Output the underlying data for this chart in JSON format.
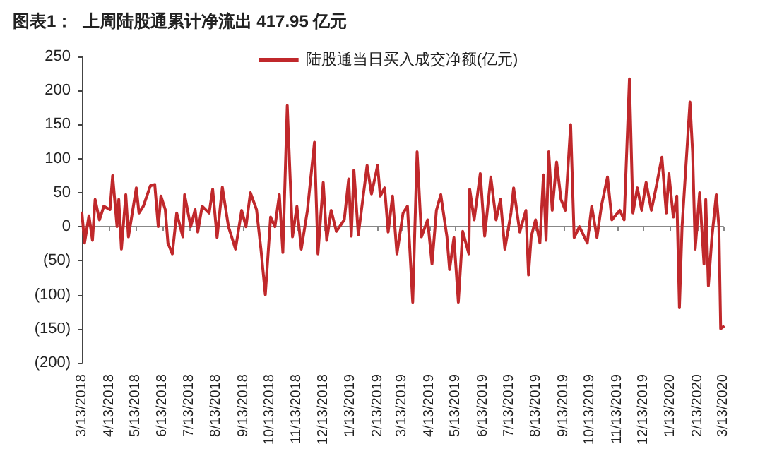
{
  "chart_data": {
    "type": "line",
    "title": "图表1：  上周陆股通累计净流出 417.95 亿元",
    "x": [
      "2018-03-13",
      "2018-03-16",
      "2018-03-21",
      "2018-03-25",
      "2018-03-28",
      "2018-04-02",
      "2018-04-07",
      "2018-04-14",
      "2018-04-17",
      "2018-04-22",
      "2018-04-24",
      "2018-04-27",
      "2018-05-02",
      "2018-05-05",
      "2018-05-14",
      "2018-05-17",
      "2018-05-22",
      "2018-05-30",
      "2018-06-04",
      "2018-06-08",
      "2018-06-11",
      "2018-06-16",
      "2018-06-19",
      "2018-06-24",
      "2018-06-29",
      "2018-07-06",
      "2018-07-08",
      "2018-07-15",
      "2018-07-20",
      "2018-07-23",
      "2018-07-28",
      "2018-08-05",
      "2018-08-09",
      "2018-08-14",
      "2018-08-20",
      "2018-08-27",
      "2018-09-04",
      "2018-09-11",
      "2018-09-16",
      "2018-09-21",
      "2018-09-28",
      "2018-10-03",
      "2018-10-08",
      "2018-10-14",
      "2018-10-19",
      "2018-10-24",
      "2018-10-28",
      "2018-11-02",
      "2018-11-08",
      "2018-11-13",
      "2018-11-18",
      "2018-11-25",
      "2018-12-03",
      "2018-12-07",
      "2018-12-13",
      "2018-12-17",
      "2018-12-22",
      "2018-12-28",
      "2019-01-06",
      "2019-01-11",
      "2019-01-14",
      "2019-01-17",
      "2019-01-22",
      "2019-02-01",
      "2019-02-06",
      "2019-02-13",
      "2019-02-16",
      "2019-02-21",
      "2019-02-25",
      "2019-03-02",
      "2019-03-07",
      "2019-03-14",
      "2019-03-19",
      "2019-03-25",
      "2019-03-30",
      "2019-04-04",
      "2019-04-11",
      "2019-04-16",
      "2019-04-21",
      "2019-04-26",
      "2019-05-03",
      "2019-05-06",
      "2019-05-11",
      "2019-05-16",
      "2019-05-21",
      "2019-05-28",
      "2019-05-29",
      "2019-06-03",
      "2019-06-10",
      "2019-06-15",
      "2019-06-22",
      "2019-06-28",
      "2019-07-03",
      "2019-07-08",
      "2019-07-15",
      "2019-07-18",
      "2019-07-25",
      "2019-08-01",
      "2019-08-04",
      "2019-08-07",
      "2019-08-12",
      "2019-08-17",
      "2019-08-21",
      "2019-08-24",
      "2019-08-27",
      "2019-08-31",
      "2019-09-05",
      "2019-09-10",
      "2019-09-15",
      "2019-09-21",
      "2019-09-25",
      "2019-10-01",
      "2019-10-10",
      "2019-10-15",
      "2019-10-21",
      "2019-10-26",
      "2019-11-02",
      "2019-11-07",
      "2019-11-16",
      "2019-11-21",
      "2019-11-27",
      "2019-12-01",
      "2019-12-06",
      "2019-12-11",
      "2019-12-16",
      "2019-12-22",
      "2019-12-27",
      "2020-01-03",
      "2020-01-08",
      "2020-01-11",
      "2020-01-16",
      "2020-01-20",
      "2020-01-23",
      "2020-01-26",
      "2020-02-04",
      "2020-02-07",
      "2020-02-10",
      "2020-02-15",
      "2020-02-20",
      "2020-02-22",
      "2020-02-25",
      "2020-02-29",
      "2020-03-05",
      "2020-03-08",
      "2020-03-10",
      "2020-03-13"
    ],
    "series": [
      {
        "name": "陆股通当日买入成交净额(亿元)",
        "color": "#c0282b",
        "values": [
          20,
          -24,
          16,
          -20,
          40,
          10,
          30,
          25,
          75,
          0,
          40,
          -33,
          47,
          -15,
          57,
          20,
          30,
          60,
          62,
          0,
          45,
          25,
          -24,
          -40,
          20,
          -15,
          47,
          0,
          25,
          -8,
          30,
          20,
          55,
          -16,
          58,
          0,
          -33,
          24,
          0,
          50,
          25,
          -33,
          -100,
          14,
          0,
          47,
          -38,
          178,
          -15,
          30,
          -33,
          24,
          124,
          -40,
          65,
          -20,
          24,
          -7,
          10,
          70,
          -14,
          83,
          -12,
          90,
          48,
          90,
          45,
          57,
          -8,
          45,
          -40,
          20,
          30,
          -111,
          110,
          -15,
          10,
          -55,
          24,
          47,
          -15,
          -63,
          -16,
          -111,
          -7,
          -40,
          55,
          10,
          78,
          -14,
          73,
          10,
          40,
          -33,
          20,
          57,
          -8,
          24,
          -71,
          -15,
          10,
          -24,
          76,
          -20,
          110,
          24,
          95,
          40,
          24,
          150,
          -16,
          0,
          -24,
          30,
          -16,
          30,
          73,
          10,
          24,
          10,
          217,
          20,
          57,
          24,
          65,
          24,
          55,
          102,
          20,
          78,
          14,
          45,
          -119,
          0,
          183,
          110,
          -33,
          50,
          -55,
          40,
          -87,
          -16,
          47,
          0,
          -150,
          -147
        ]
      }
    ],
    "xlim": [
      "2018-03-13",
      "2020-03-13"
    ],
    "xticks": [
      {
        "value": "2018-03-13",
        "label": "3/13/2018"
      },
      {
        "value": "2018-04-13",
        "label": "4/13/2018"
      },
      {
        "value": "2018-05-13",
        "label": "5/13/2018"
      },
      {
        "value": "2018-06-13",
        "label": "6/13/2018"
      },
      {
        "value": "2018-07-13",
        "label": "7/13/2018"
      },
      {
        "value": "2018-08-13",
        "label": "8/13/2018"
      },
      {
        "value": "2018-09-13",
        "label": "9/13/2018"
      },
      {
        "value": "2018-10-13",
        "label": "10/13/2018"
      },
      {
        "value": "2018-11-13",
        "label": "11/13/2018"
      },
      {
        "value": "2018-12-13",
        "label": "12/13/2018"
      },
      {
        "value": "2019-01-13",
        "label": "1/13/2019"
      },
      {
        "value": "2019-02-13",
        "label": "2/13/2019"
      },
      {
        "value": "2019-03-13",
        "label": "3/13/2019"
      },
      {
        "value": "2019-04-13",
        "label": "4/13/2019"
      },
      {
        "value": "2019-05-13",
        "label": "5/13/2019"
      },
      {
        "value": "2019-06-13",
        "label": "6/13/2019"
      },
      {
        "value": "2019-07-13",
        "label": "7/13/2019"
      },
      {
        "value": "2019-08-13",
        "label": "8/13/2019"
      },
      {
        "value": "2019-09-13",
        "label": "9/13/2019"
      },
      {
        "value": "2019-10-13",
        "label": "10/13/2019"
      },
      {
        "value": "2019-11-13",
        "label": "11/13/2019"
      },
      {
        "value": "2019-12-13",
        "label": "12/13/2019"
      },
      {
        "value": "2020-01-13",
        "label": "1/13/2020"
      },
      {
        "value": "2020-02-13",
        "label": "2/13/2020"
      },
      {
        "value": "2020-03-13",
        "label": "3/13/2020"
      }
    ],
    "ylim": [
      -200,
      250
    ],
    "yticks": [
      {
        "value": -200,
        "label": "(200)"
      },
      {
        "value": -150,
        "label": "(150)"
      },
      {
        "value": -100,
        "label": "(100)"
      },
      {
        "value": -50,
        "label": "(50)"
      },
      0,
      50,
      100,
      150,
      200,
      250
    ],
    "legend": "top",
    "marker": "none",
    "line_style": "solid"
  }
}
